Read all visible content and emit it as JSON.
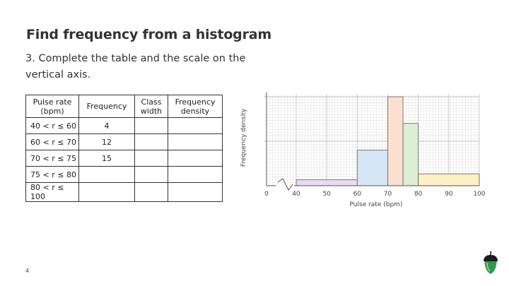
{
  "header": {
    "title": "Find frequency from a histogram",
    "instruction": "3. Complete the table and the scale on the vertical axis."
  },
  "table": {
    "headers": {
      "pulse_rate": "Pulse rate (bpm)",
      "frequency": "Frequency",
      "class_width": "Class width",
      "frequency_density": "Frequency density"
    },
    "rows": [
      {
        "class": "40 < r ≤ 60",
        "frequency": "4",
        "class_width": "",
        "frequency_density": ""
      },
      {
        "class": "60 < r ≤ 70",
        "frequency": "12",
        "class_width": "",
        "frequency_density": ""
      },
      {
        "class": "70 < r ≤ 75",
        "frequency": "15",
        "class_width": "",
        "frequency_density": ""
      },
      {
        "class": "75 < r ≤ 80",
        "frequency": "",
        "class_width": "",
        "frequency_density": ""
      },
      {
        "class": "80 < r ≤ 100",
        "frequency": "",
        "class_width": "",
        "frequency_density": ""
      }
    ]
  },
  "chart_data": {
    "type": "bar",
    "xlabel": "Pulse rate (bpm)",
    "ylabel": "Frequency density",
    "xlim": [
      0,
      100
    ],
    "x_ticks": [
      "0",
      "40",
      "50",
      "60",
      "70",
      "80",
      "90",
      "100"
    ],
    "axis_break": true,
    "grid": true,
    "y_scale_labels": "blank",
    "y_units_note": "heights measured in grid squares (y axis unlabeled)",
    "y_gridlines_major": [
      0,
      15,
      30
    ],
    "bars": [
      {
        "x_start": 40,
        "x_end": 60,
        "height": 2,
        "color": "#e8dcf4"
      },
      {
        "x_start": 60,
        "x_end": 70,
        "height": 12,
        "color": "#d6e6f6"
      },
      {
        "x_start": 70,
        "x_end": 75,
        "height": 30,
        "color": "#fbe0cf"
      },
      {
        "x_start": 75,
        "x_end": 80,
        "height": 21,
        "color": "#dcefd6"
      },
      {
        "x_start": 80,
        "x_end": 100,
        "height": 4,
        "color": "#fcf0c4"
      }
    ]
  },
  "page": {
    "number": "4"
  },
  "colors": {
    "logo_body": "#2f9a4b",
    "logo_cap": "#1e1e1e"
  }
}
